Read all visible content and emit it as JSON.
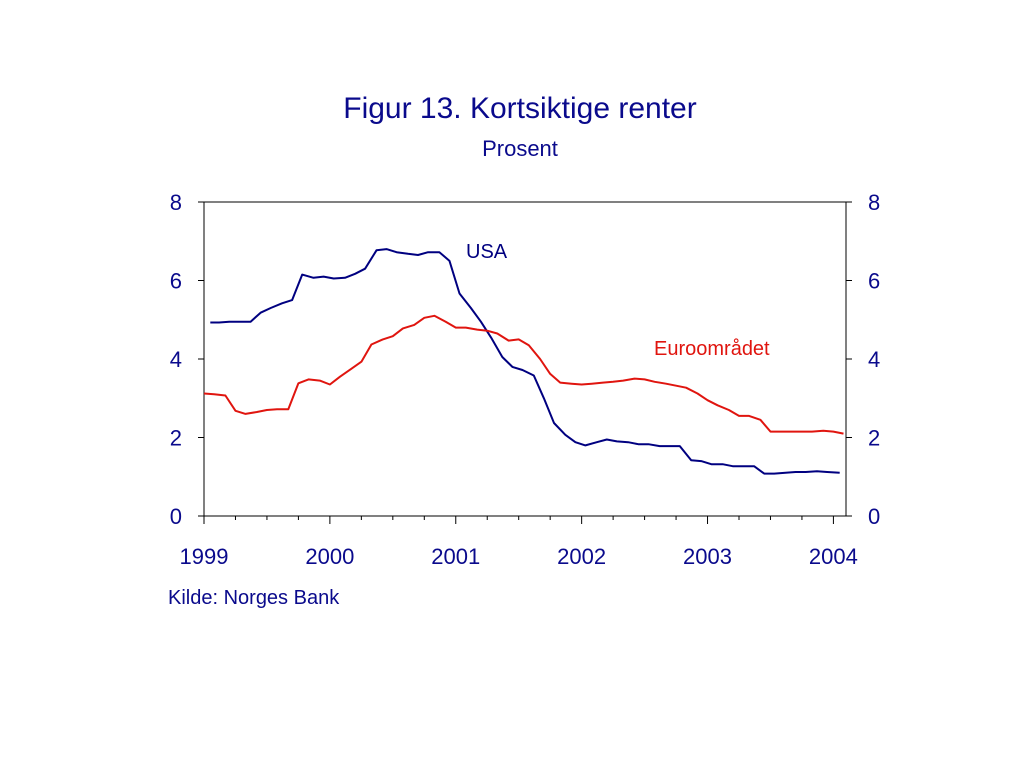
{
  "title": "Figur 13. Kortsiktige renter",
  "subtitle": "Prosent",
  "source": "Kilde: Norges Bank",
  "colors": {
    "text": "#0a0a8c",
    "usa": "#000080",
    "euro": "#e0150f",
    "axis": "#000000"
  },
  "chart_data": {
    "type": "line",
    "ylim": [
      0,
      8
    ],
    "yticks": [
      "0",
      "2",
      "4",
      "6",
      "8"
    ],
    "xlim": [
      1999.0,
      2004.1
    ],
    "xticks": [
      "1999",
      "2000",
      "2001",
      "2002",
      "2003",
      "2004"
    ],
    "grid": false,
    "series": [
      {
        "name": "USA",
        "x": [
          1999.05,
          1999.12,
          1999.2,
          1999.28,
          1999.37,
          1999.45,
          1999.53,
          1999.62,
          1999.7,
          1999.78,
          1999.87,
          1999.95,
          2000.03,
          2000.12,
          2000.2,
          2000.28,
          2000.37,
          2000.45,
          2000.53,
          2000.62,
          2000.7,
          2000.78,
          2000.87,
          2000.95,
          2001.03,
          2001.12,
          2001.2,
          2001.28,
          2001.37,
          2001.45,
          2001.53,
          2001.62,
          2001.7,
          2001.78,
          2001.87,
          2001.95,
          2002.03,
          2002.12,
          2002.2,
          2002.28,
          2002.37,
          2002.45,
          2002.53,
          2002.62,
          2002.7,
          2002.78,
          2002.87,
          2002.95,
          2003.03,
          2003.12,
          2003.2,
          2003.28,
          2003.37,
          2003.45,
          2003.53,
          2003.62,
          2003.7,
          2003.78,
          2003.87,
          2003.95,
          2004.05
        ],
        "values": [
          4.93,
          4.93,
          4.95,
          4.95,
          4.95,
          5.18,
          5.3,
          5.42,
          5.5,
          6.15,
          6.07,
          6.1,
          6.05,
          6.07,
          6.17,
          6.3,
          6.77,
          6.8,
          6.72,
          6.68,
          6.65,
          6.72,
          6.72,
          6.5,
          5.67,
          5.3,
          4.95,
          4.55,
          4.05,
          3.8,
          3.72,
          3.58,
          3.0,
          2.37,
          2.07,
          1.88,
          1.8,
          1.88,
          1.95,
          1.9,
          1.88,
          1.83,
          1.83,
          1.78,
          1.78,
          1.78,
          1.42,
          1.4,
          1.32,
          1.32,
          1.27,
          1.27,
          1.27,
          1.08,
          1.08,
          1.1,
          1.12,
          1.12,
          1.14,
          1.12,
          1.1
        ]
      },
      {
        "name": "Euroområdet",
        "x": [
          1999.0,
          1999.08,
          1999.17,
          1999.25,
          1999.33,
          1999.42,
          1999.5,
          1999.58,
          1999.67,
          1999.75,
          1999.83,
          1999.92,
          2000.0,
          2000.08,
          2000.17,
          2000.25,
          2000.33,
          2000.42,
          2000.5,
          2000.58,
          2000.67,
          2000.75,
          2000.83,
          2000.92,
          2001.0,
          2001.08,
          2001.17,
          2001.25,
          2001.33,
          2001.42,
          2001.5,
          2001.58,
          2001.67,
          2001.75,
          2001.83,
          2001.92,
          2002.0,
          2002.08,
          2002.17,
          2002.25,
          2002.33,
          2002.42,
          2002.5,
          2002.58,
          2002.67,
          2002.75,
          2002.83,
          2002.92,
          2003.0,
          2003.08,
          2003.17,
          2003.25,
          2003.33,
          2003.42,
          2003.5,
          2003.58,
          2003.67,
          2003.75,
          2003.83,
          2003.92,
          2004.0,
          2004.08
        ],
        "values": [
          3.12,
          3.1,
          3.07,
          2.68,
          2.6,
          2.65,
          2.7,
          2.72,
          2.72,
          3.38,
          3.48,
          3.45,
          3.35,
          3.55,
          3.75,
          3.93,
          4.37,
          4.5,
          4.58,
          4.78,
          4.87,
          5.05,
          5.1,
          4.95,
          4.8,
          4.8,
          4.75,
          4.72,
          4.65,
          4.47,
          4.5,
          4.35,
          4.0,
          3.62,
          3.4,
          3.37,
          3.35,
          3.37,
          3.4,
          3.42,
          3.45,
          3.5,
          3.48,
          3.42,
          3.37,
          3.32,
          3.27,
          3.12,
          2.95,
          2.82,
          2.7,
          2.55,
          2.55,
          2.45,
          2.15,
          2.15,
          2.15,
          2.15,
          2.15,
          2.17,
          2.15,
          2.1
        ]
      }
    ]
  }
}
